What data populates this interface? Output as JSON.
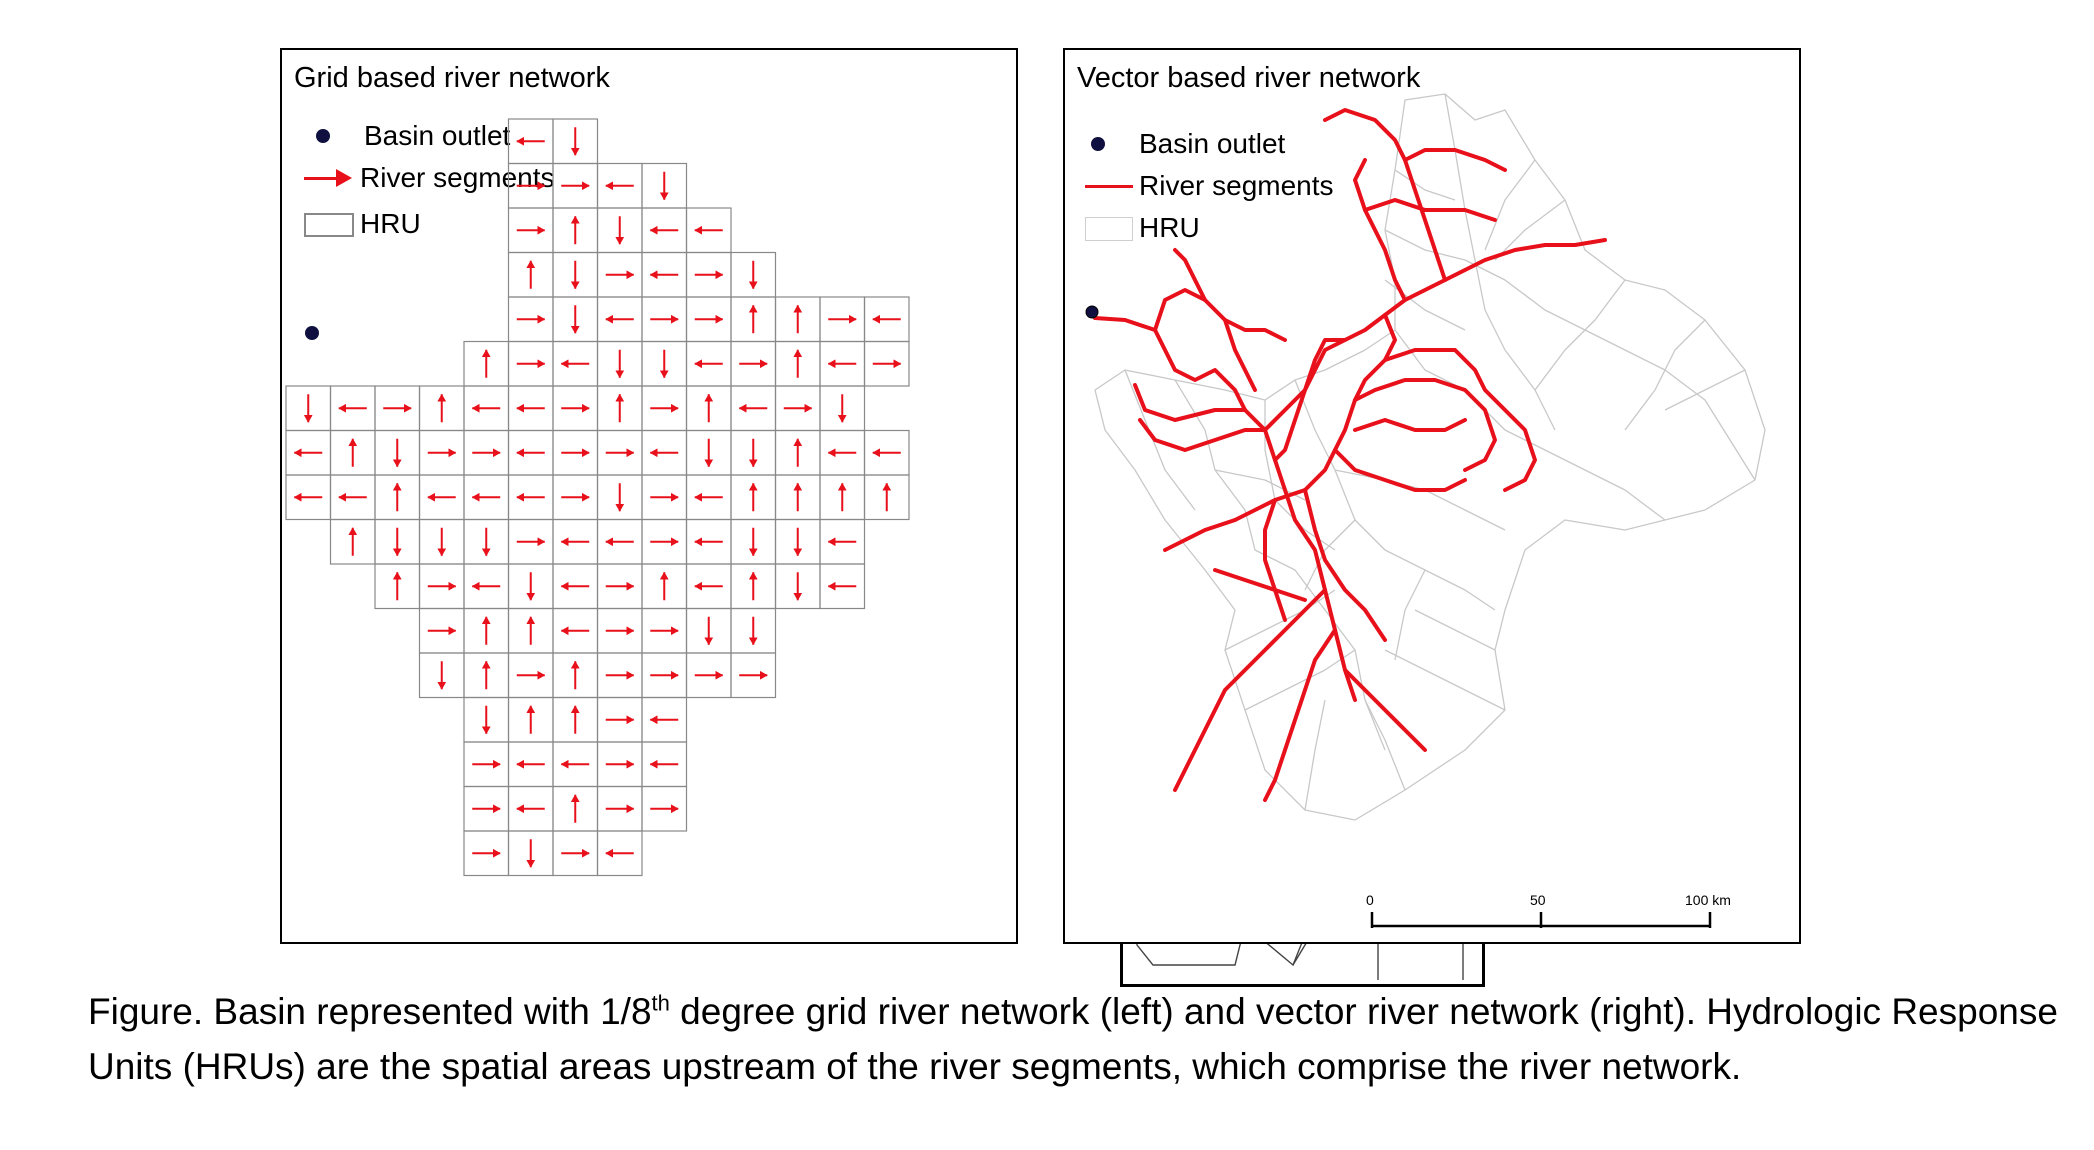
{
  "left_panel": {
    "title": "Grid based river network",
    "legend": {
      "outlet": "Basin outlet",
      "segments": "River segments",
      "hru": "HRU"
    }
  },
  "right_panel": {
    "title": "Vector based river network",
    "legend": {
      "outlet": "Basin outlet",
      "segments": "River segments",
      "hru": "HRU"
    },
    "scale_bar": {
      "ticks": [
        "0",
        "50",
        "100 km"
      ]
    }
  },
  "caption": {
    "part1": "Figure. Basin represented with 1/8",
    "superscript": "th",
    "part2": " degree grid river network (left) and vector river network (right). Hydrologic Response Units (HRUs) are the spatial areas upstream of the river segments, which comprise the river network."
  },
  "colors": {
    "river": "#e8101a",
    "outlet": "#101040",
    "hru_grid": "#888888",
    "hru_vector": "#c8c8c8"
  },
  "icons": [
    "basin-outlet-dot",
    "river-arrow-icon",
    "hru-box-icon"
  ]
}
